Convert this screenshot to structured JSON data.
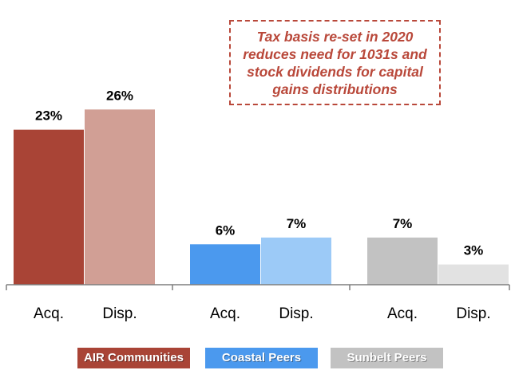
{
  "chart_data": {
    "type": "bar",
    "groups": [
      {
        "name": "AIR Communities",
        "bars": [
          {
            "category": "Acq.",
            "value": 23,
            "label": "23%"
          },
          {
            "category": "Disp.",
            "value": 26,
            "label": "26%"
          }
        ]
      },
      {
        "name": "Coastal Peers",
        "bars": [
          {
            "category": "Acq.",
            "value": 6,
            "label": "6%"
          },
          {
            "category": "Disp.",
            "value": 7,
            "label": "7%"
          }
        ]
      },
      {
        "name": "Sunbelt Peers",
        "bars": [
          {
            "category": "Acq.",
            "value": 7,
            "label": "7%"
          },
          {
            "category": "Disp.",
            "value": 3,
            "label": "3%"
          }
        ]
      }
    ],
    "ylim": [
      0,
      35
    ],
    "grid": false,
    "legend_position": "bottom",
    "annotation": "Tax basis re-set in 2020 reduces need for 1031s and stock dividends for capital gains distributions"
  },
  "legend": [
    {
      "label": "AIR Communities",
      "color": "#a94436"
    },
    {
      "label": "Coastal Peers",
      "color": "#4b99ee"
    },
    {
      "label": "Sunbelt Peers",
      "color": "#c2c2c2"
    }
  ],
  "bar_colors": [
    [
      "#a94436",
      "#d19f95"
    ],
    [
      "#4b99ee",
      "#9ccaf7"
    ],
    [
      "#c2c2c2",
      "#e2e2e2"
    ]
  ],
  "axis_color": "#7f7f7f"
}
